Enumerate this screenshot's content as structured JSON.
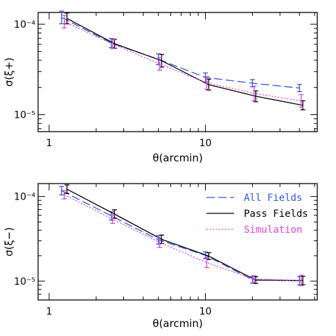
{
  "chart_data": [
    {
      "type": "line",
      "scale": "log-log",
      "xlabel": "θ(arcmin)",
      "ylabel": "σ(ξ+)",
      "xlim": [
        0.85,
        52
      ],
      "ylim": [
        6.5e-06,
        0.000135
      ],
      "x_ticks": [
        {
          "value": 1,
          "label": "1"
        },
        {
          "value": 10,
          "label": "10"
        }
      ],
      "y_ticks": [
        {
          "value": 0.0001,
          "label": "10⁻⁴"
        },
        {
          "value": 1e-05,
          "label": "10⁻⁵"
        }
      ],
      "series": [
        {
          "name": "All Fields",
          "color": "#3355dd",
          "dash": "12,5",
          "x": [
            1.2,
            2.5,
            5.0,
            10.0,
            20.0,
            40.0
          ],
          "y": [
            0.000119,
            6.2e-05,
            4.1e-05,
            2.58e-05,
            2.23e-05,
            1.97e-05
          ],
          "err": [
            0.07,
            0.05,
            0.06,
            0.05,
            0.04,
            0.04
          ]
        },
        {
          "name": "Pass Fields",
          "color": "#000000",
          "dash": "",
          "x": [
            1.3,
            2.62,
            5.25,
            10.5,
            21.0,
            42.0
          ],
          "y": [
            0.000116,
            6.1e-05,
            3.95e-05,
            2.15e-05,
            1.6e-05,
            1.27e-05
          ],
          "err": [
            0.06,
            0.05,
            0.07,
            0.06,
            0.06,
            0.05
          ]
        },
        {
          "name": "Simulation",
          "color": "#dd44dd",
          "dash": "2,2.5",
          "x": [
            1.25,
            2.55,
            5.1,
            10.2,
            20.5,
            41.0
          ],
          "y": [
            0.000107,
            6.05e-05,
            3.65e-05,
            2.25e-05,
            1.72e-05,
            1.42e-05
          ],
          "err": [
            0.07,
            0.05,
            0.07,
            0.07,
            0.08,
            0.07
          ]
        }
      ]
    },
    {
      "type": "line",
      "scale": "log-log",
      "xlabel": "θ(arcmin)",
      "ylabel": "σ(ξ−)",
      "xlim": [
        0.85,
        52
      ],
      "ylim": [
        6e-06,
        0.000142
      ],
      "x_ticks": [
        {
          "value": 1,
          "label": "1"
        },
        {
          "value": 10,
          "label": "10"
        }
      ],
      "y_ticks": [
        {
          "value": 0.0001,
          "label": "10⁻⁴"
        },
        {
          "value": 1e-05,
          "label": "10⁻⁵"
        }
      ],
      "legend_position": "top-right",
      "series": [
        {
          "name": "All Fields",
          "color": "#3355dd",
          "dash": "12,5",
          "x": [
            1.2,
            2.5,
            5.0,
            10.0,
            20.0,
            40.0
          ],
          "y": [
            0.000117,
            5.9e-05,
            3.08e-05,
            2.02e-05,
            1.04e-05,
            1.01e-05
          ],
          "err": [
            0.05,
            0.05,
            0.05,
            0.04,
            0.04,
            0.05
          ]
        },
        {
          "name": "Pass Fields",
          "color": "#000000",
          "dash": "",
          "x": [
            1.3,
            2.62,
            5.25,
            10.5,
            21.0,
            42.0
          ],
          "y": [
            0.000122,
            6.2e-05,
            3.12e-05,
            1.98e-05,
            1.03e-05,
            1.02e-05
          ],
          "err": [
            0.05,
            0.05,
            0.05,
            0.04,
            0.04,
            0.05
          ]
        },
        {
          "name": "Simulation",
          "color": "#dd44dd",
          "dash": "2,2.5",
          "x": [
            1.25,
            2.55,
            5.1,
            10.2,
            20.5,
            41.0
          ],
          "y": [
            0.000105,
            5.4e-05,
            2.87e-05,
            1.66e-05,
            1.06e-05,
            1.02e-05
          ],
          "err": [
            0.05,
            0.05,
            0.06,
            0.06,
            0.04,
            0.06
          ]
        }
      ]
    }
  ]
}
